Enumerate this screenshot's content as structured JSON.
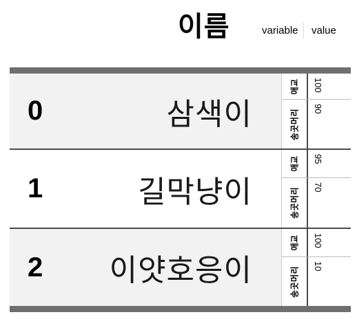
{
  "header": {
    "title": "이름",
    "variable_label": "variable",
    "value_label": "value"
  },
  "rows": [
    {
      "index": "0",
      "name": "삼색이",
      "vars": [
        {
          "variable": "애교",
          "value": "100"
        },
        {
          "variable": "송곳머리",
          "value": "90"
        }
      ]
    },
    {
      "index": "1",
      "name": "길막냥이",
      "vars": [
        {
          "variable": "애교",
          "value": "95"
        },
        {
          "variable": "송곳머리",
          "value": "70"
        }
      ]
    },
    {
      "index": "2",
      "name": "이얏호응이",
      "vars": [
        {
          "variable": "애교",
          "value": "100"
        },
        {
          "variable": "송곳머리",
          "value": "10"
        }
      ]
    }
  ],
  "colors": {
    "rule": "#6f6f6f",
    "shaded_row": "#f2f2f2"
  }
}
